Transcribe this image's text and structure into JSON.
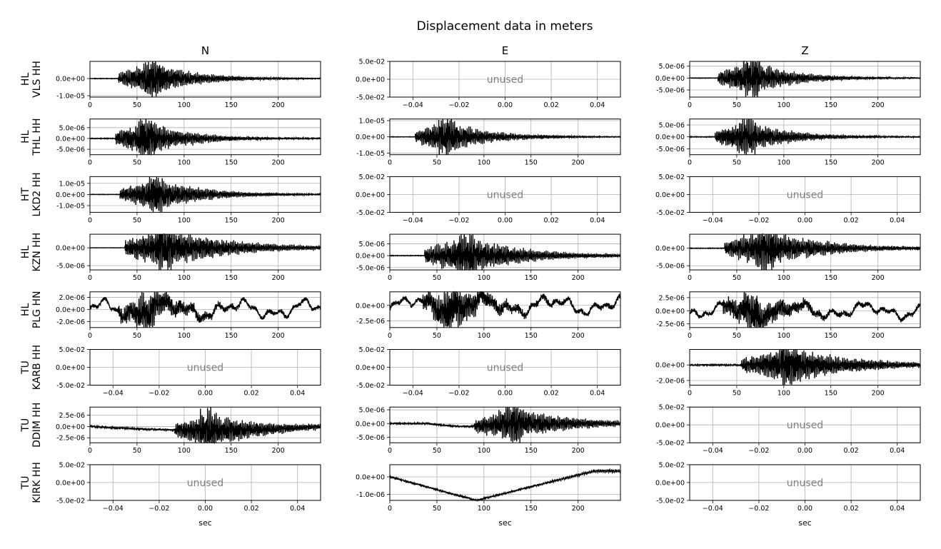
{
  "title": "Displacement data in meters",
  "columns": [
    "N",
    "E",
    "Z"
  ],
  "xlabel": "sec",
  "unused_label": "unused",
  "rows": [
    {
      "label": "HL\nVLS HH"
    },
    {
      "label": "HL\nTHL HH"
    },
    {
      "label": "HT\nLKD2 HH"
    },
    {
      "label": "HL\nKZN HH"
    },
    {
      "label": "HL\nPLG HN"
    },
    {
      "label": "TU\nKARB HH"
    },
    {
      "label": "TU\nDDIM HH"
    },
    {
      "label": "TU\nKIRK HH"
    }
  ],
  "chart_data": {
    "type": "line",
    "title": "Displacement data in meters",
    "layout": "8 rows x 3 columns small multiples; rows = stations, columns = components",
    "grid": true,
    "line_color": "#000000",
    "unused_panel": {
      "text": "unused",
      "xlim": [
        -0.05,
        0.05
      ],
      "xticks": [
        -0.04,
        -0.02,
        0.0,
        0.02,
        0.04
      ],
      "xticklabels": [
        "−0.04",
        "−0.02",
        "0.00",
        "0.02",
        "0.04"
      ],
      "ylim": [
        -0.05,
        0.05
      ],
      "yticks": [
        -0.05,
        0.0,
        0.05
      ],
      "yticklabels": [
        "-5.0e-02",
        "0.0e+00",
        "5.0e-02"
      ]
    },
    "time_axis": {
      "xlim": [
        0,
        245
      ],
      "xticks": [
        0,
        50,
        100,
        150,
        200
      ]
    },
    "panels": [
      {
        "row": 0,
        "col": 0,
        "used": true,
        "onset": 30,
        "peak_t": 65,
        "decay": 45,
        "noise": 0.02,
        "ylim": [
          -1.08e-05,
          1e-05
        ],
        "yticks": [
          -1e-05,
          0
        ],
        "yticklabels": [
          "-1.0e-05",
          "0.0e+00"
        ],
        "seed": 11
      },
      {
        "row": 0,
        "col": 1,
        "used": false
      },
      {
        "row": 0,
        "col": 2,
        "used": true,
        "onset": 30,
        "peak_t": 65,
        "decay": 45,
        "noise": 0.02,
        "ylim": [
          -8e-06,
          7e-06
        ],
        "yticks": [
          -5e-06,
          0,
          5e-06
        ],
        "yticklabels": [
          "-5.0e-06",
          "0.0e+00",
          "5.0e-06"
        ],
        "seed": 12
      },
      {
        "row": 1,
        "col": 0,
        "used": true,
        "onset": 27,
        "peak_t": 60,
        "decay": 45,
        "noise": 0.03,
        "ylim": [
          -7.5e-06,
          9e-06
        ],
        "yticks": [
          -5e-06,
          0,
          5e-06
        ],
        "yticklabels": [
          "-5.0e-06",
          "0.0e+00",
          "5.0e-06"
        ],
        "seed": 21
      },
      {
        "row": 1,
        "col": 1,
        "used": true,
        "onset": 27,
        "peak_t": 60,
        "decay": 45,
        "noise": 0.02,
        "ylim": [
          -1.1e-05,
          1.1e-05
        ],
        "yticks": [
          -1e-05,
          0,
          1e-05
        ],
        "yticklabels": [
          "-1.0e-05",
          "0.0e+00",
          "1.0e-05"
        ],
        "seed": 22
      },
      {
        "row": 1,
        "col": 2,
        "used": true,
        "onset": 27,
        "peak_t": 60,
        "decay": 45,
        "noise": 0.03,
        "ylim": [
          -7.5e-06,
          7.5e-06
        ],
        "yticks": [
          -5e-06,
          0,
          5e-06
        ],
        "yticklabels": [
          "-5.0e-06",
          "0.0e+00",
          "5.0e-06"
        ],
        "seed": 23
      },
      {
        "row": 2,
        "col": 0,
        "used": true,
        "onset": 32,
        "peak_t": 70,
        "decay": 50,
        "noise": 0.02,
        "ylim": [
          -1.6e-05,
          1.6e-05
        ],
        "yticks": [
          -1e-05,
          0,
          1e-05
        ],
        "yticklabels": [
          "-1.0e-05",
          "0.0e+00",
          "1.0e-05"
        ],
        "seed": 31
      },
      {
        "row": 2,
        "col": 1,
        "used": false
      },
      {
        "row": 2,
        "col": 2,
        "used": false
      },
      {
        "row": 3,
        "col": 0,
        "used": true,
        "onset": 37,
        "peak_t": 78,
        "decay": 70,
        "noise": 0.0,
        "ylim": [
          -6.2e-06,
          3.8e-06
        ],
        "yticks": [
          -5e-06,
          0
        ],
        "yticklabels": [
          "-5.0e-06",
          "0.0e+00"
        ],
        "seed": 41
      },
      {
        "row": 3,
        "col": 1,
        "used": true,
        "onset": 37,
        "peak_t": 80,
        "decay": 60,
        "noise": 0.02,
        "ylim": [
          -6e-06,
          9e-06
        ],
        "yticks": [
          -5e-06,
          0,
          5e-06
        ],
        "yticklabels": [
          "-5.0e-06",
          "0.0e+00",
          "5.0e-06"
        ],
        "seed": 42
      },
      {
        "row": 3,
        "col": 2,
        "used": true,
        "onset": 37,
        "peak_t": 80,
        "decay": 60,
        "noise": 0.02,
        "ylim": [
          -6.2e-06,
          4e-06
        ],
        "yticks": [
          -5e-06,
          0
        ],
        "yticklabels": [
          "-5.0e-06",
          "0.0e+00"
        ],
        "seed": 43
      },
      {
        "row": 4,
        "col": 0,
        "used": true,
        "onset": 30,
        "peak_t": 60,
        "decay": 40,
        "noise": 0.2,
        "wander": 0.55,
        "ylim": [
          -3e-06,
          2.9e-06
        ],
        "yticks": [
          -2e-06,
          0,
          2e-06
        ],
        "yticklabels": [
          "-2.0e-06",
          "0.0e+00",
          "2.0e-06"
        ],
        "seed": 51
      },
      {
        "row": 4,
        "col": 1,
        "used": true,
        "onset": 35,
        "peak_t": 65,
        "decay": 40,
        "noise": 0.2,
        "wander": 0.45,
        "ylim": [
          -3.6e-06,
          2.2e-06
        ],
        "yticks": [
          -2.5e-06,
          0
        ],
        "yticklabels": [
          "-2.5e-06",
          "0.0e+00"
        ],
        "seed": 52
      },
      {
        "row": 4,
        "col": 2,
        "used": true,
        "onset": 35,
        "peak_t": 65,
        "decay": 40,
        "noise": 0.2,
        "wander": 0.45,
        "ylim": [
          -3.2e-06,
          3.6e-06
        ],
        "yticks": [
          -2.5e-06,
          0,
          2.5e-06
        ],
        "yticklabels": [
          "-2.5e-06",
          "0.0e+00",
          "2.5e-06"
        ],
        "seed": 53
      },
      {
        "row": 5,
        "col": 0,
        "used": false
      },
      {
        "row": 5,
        "col": 1,
        "used": false
      },
      {
        "row": 5,
        "col": 2,
        "used": true,
        "onset": 55,
        "peak_t": 105,
        "decay": 70,
        "noise": 0.06,
        "ylim": [
          -2.6e-06,
          2e-06
        ],
        "yticks": [
          -2e-06,
          0
        ],
        "yticklabels": [
          "-2.0e-06",
          "0.0e+00"
        ],
        "seed": 63
      },
      {
        "row": 6,
        "col": 0,
        "used": true,
        "onset": 90,
        "peak_t": 125,
        "decay": 60,
        "noise": 0.08,
        "drift": -0.2,
        "ylim": [
          -3.6e-06,
          4.3e-06
        ],
        "yticks": [
          -2.5e-06,
          0,
          2.5e-06
        ],
        "yticklabels": [
          "-2.5e-06",
          "0.0e+00",
          "2.5e-06"
        ],
        "seed": 71
      },
      {
        "row": 6,
        "col": 1,
        "used": true,
        "onset": 90,
        "peak_t": 130,
        "decay": 60,
        "noise": 0.05,
        "dip": -0.15,
        "ylim": [
          -7e-06,
          6e-06
        ],
        "yticks": [
          -5e-06,
          0,
          5e-06
        ],
        "yticklabels": [
          "-5.0e-06",
          "0.0e+00",
          "5.0e-06"
        ],
        "seed": 72
      },
      {
        "row": 6,
        "col": 2,
        "used": false
      },
      {
        "row": 7,
        "col": 0,
        "used": false
      },
      {
        "row": 7,
        "col": 1,
        "used": true,
        "kind": "trend",
        "ylim": [
          -1.35e-06,
          7e-07
        ],
        "yticks": [
          -1e-06,
          0
        ],
        "yticklabels": [
          "-1.0e-06",
          "0.0e+00"
        ],
        "seed": 82
      },
      {
        "row": 7,
        "col": 2,
        "used": false
      }
    ]
  }
}
